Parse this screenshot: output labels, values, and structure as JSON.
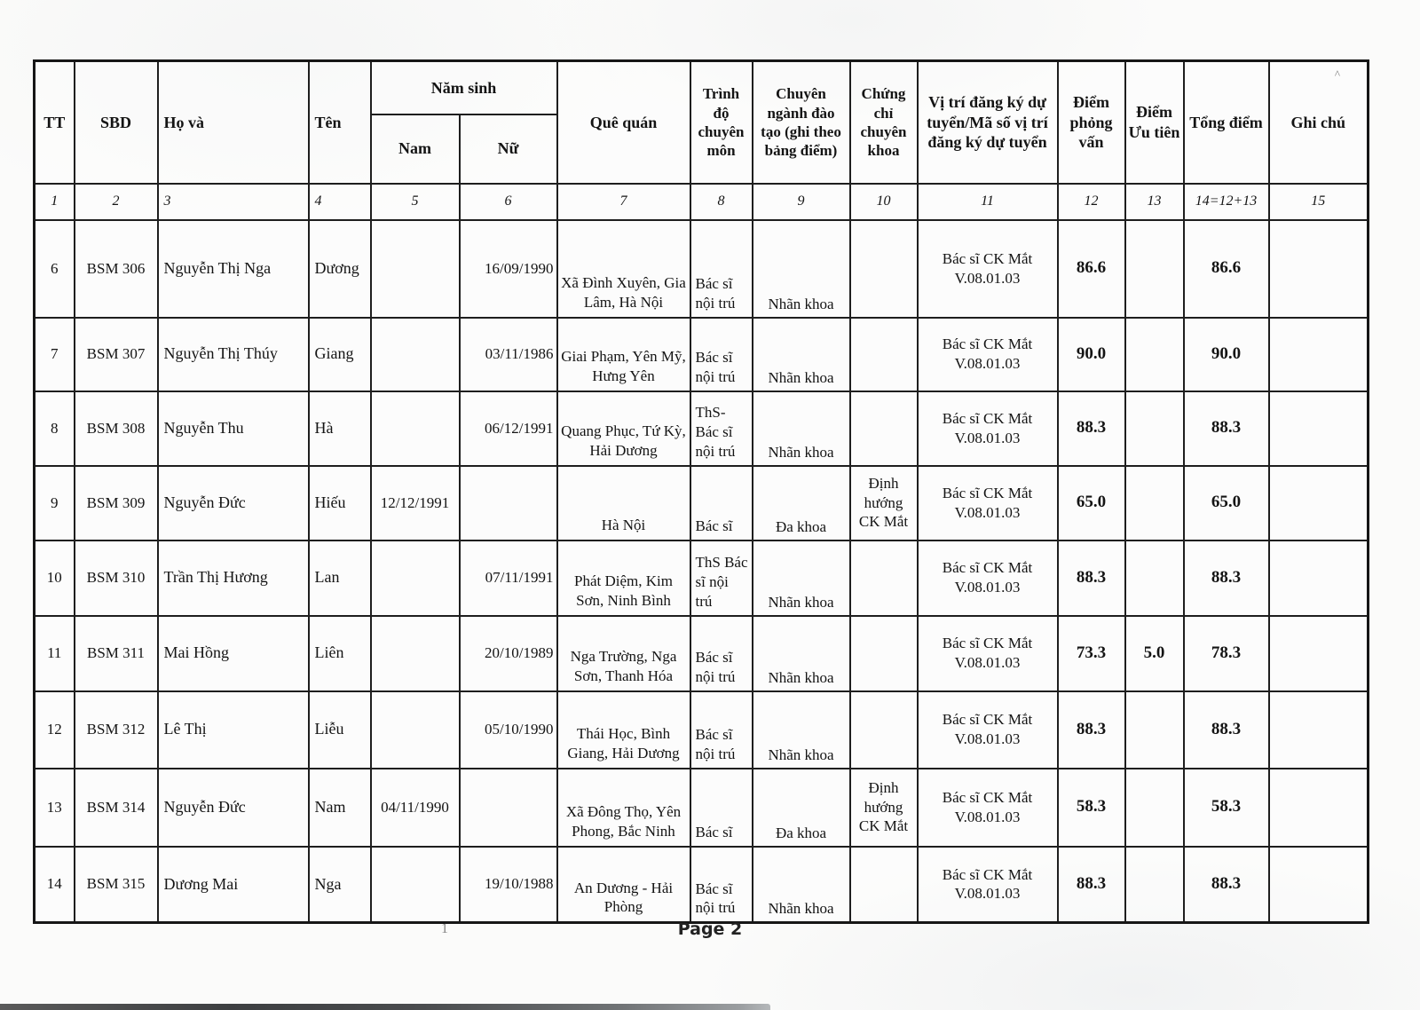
{
  "page": {
    "footer": "Page 2"
  },
  "artifacts": {
    "ghi_chu_mark": "^",
    "footer_mark": "1"
  },
  "table": {
    "headers": {
      "tt": "TT",
      "sbd": "SBD",
      "ho_va": "Họ và",
      "ten": "Tên",
      "nam_sinh": "Năm sinh",
      "nam": "Nam",
      "nu": "Nữ",
      "que_quan": "Quê quán",
      "trinh_do": "Trình độ chuyên môn",
      "chuyen_nganh": "Chuyên ngành đào tạo (ghi theo bảng điểm)",
      "chung_chi": "Chứng chỉ chuyên khoa",
      "vi_tri": "Vị trí đăng ký dự tuyển/Mã số vị trí đăng ký dự tuyển",
      "diem_pv": "Điểm phỏng vấn",
      "diem_ut": "Điểm Ưu tiên",
      "tong_diem": "Tổng điểm",
      "ghi_chu": "Ghi chú"
    },
    "column_numbers": [
      "1",
      "2",
      "3",
      "4",
      "5",
      "6",
      "7",
      "8",
      "9",
      "10",
      "11",
      "12",
      "13",
      "14=12+13",
      "15"
    ],
    "rows": [
      {
        "tt": "6",
        "sbd": "BSM 306",
        "ho_va": "Nguyễn Thị Nga",
        "ten": "Dương",
        "nam": "",
        "nu": "16/09/1990",
        "que_quan": "Xã Đình Xuyên, Gia Lâm, Hà Nội",
        "trinh_do": "Bác sĩ nội trú",
        "chuyen_nganh": "Nhãn khoa",
        "chung_chi": "",
        "vi_tri": "Bác sĩ CK Mắt V.08.01.03",
        "diem_pv": "86.6",
        "diem_ut": "",
        "tong_diem": "86.6",
        "ghi_chu": ""
      },
      {
        "tt": "7",
        "sbd": "BSM 307",
        "ho_va": "Nguyễn Thị Thúy",
        "ten": "Giang",
        "nam": "",
        "nu": "03/11/1986",
        "que_quan": "Giai Phạm, Yên Mỹ, Hưng Yên",
        "trinh_do": "Bác sĩ nội trú",
        "chuyen_nganh": "Nhãn khoa",
        "chung_chi": "",
        "vi_tri": "Bác sĩ CK Mắt V.08.01.03",
        "diem_pv": "90.0",
        "diem_ut": "",
        "tong_diem": "90.0",
        "ghi_chu": ""
      },
      {
        "tt": "8",
        "sbd": "BSM 308",
        "ho_va": "Nguyễn Thu",
        "ten": "Hà",
        "nam": "",
        "nu": "06/12/1991",
        "que_quan": "Quang Phục, Tứ Kỳ, Hải Dương",
        "trinh_do": "ThS-Bác sĩ nội trú",
        "chuyen_nganh": "Nhãn khoa",
        "chung_chi": "",
        "vi_tri": "Bác sĩ CK Mắt V.08.01.03",
        "diem_pv": "88.3",
        "diem_ut": "",
        "tong_diem": "88.3",
        "ghi_chu": ""
      },
      {
        "tt": "9",
        "sbd": "BSM 309",
        "ho_va": "Nguyễn Đức",
        "ten": "Hiếu",
        "nam": "12/12/1991",
        "nu": "",
        "que_quan": "Hà Nội",
        "trinh_do": "Bác sĩ",
        "chuyen_nganh": "Đa khoa",
        "chung_chi": "Định hướng CK Mắt",
        "vi_tri": "Bác sĩ CK Mắt V.08.01.03",
        "diem_pv": "65.0",
        "diem_ut": "",
        "tong_diem": "65.0",
        "ghi_chu": ""
      },
      {
        "tt": "10",
        "sbd": "BSM 310",
        "ho_va": "Trần Thị Hương",
        "ten": "Lan",
        "nam": "",
        "nu": "07/11/1991",
        "que_quan": "Phát Diệm, Kim Sơn, Ninh Bình",
        "trinh_do": "ThS Bác sĩ nội trú",
        "chuyen_nganh": "Nhãn khoa",
        "chung_chi": "",
        "vi_tri": "Bác sĩ CK Mắt V.08.01.03",
        "diem_pv": "88.3",
        "diem_ut": "",
        "tong_diem": "88.3",
        "ghi_chu": ""
      },
      {
        "tt": "11",
        "sbd": "BSM 311",
        "ho_va": "Mai Hồng",
        "ten": "Liên",
        "nam": "",
        "nu": "20/10/1989",
        "que_quan": "Nga Trường, Nga Sơn, Thanh Hóa",
        "trinh_do": "Bác sĩ nội trú",
        "chuyen_nganh": "Nhãn khoa",
        "chung_chi": "",
        "vi_tri": "Bác sĩ CK Mắt V.08.01.03",
        "diem_pv": "73.3",
        "diem_ut": "5.0",
        "tong_diem": "78.3",
        "ghi_chu": ""
      },
      {
        "tt": "12",
        "sbd": "BSM 312",
        "ho_va": "Lê Thị",
        "ten": "Liễu",
        "nam": "",
        "nu": "05/10/1990",
        "que_quan": "Thái Học, Bình Giang, Hải Dương",
        "trinh_do": "Bác sĩ nội trú",
        "chuyen_nganh": "Nhãn khoa",
        "chung_chi": "",
        "vi_tri": "Bác sĩ CK Mắt V.08.01.03",
        "diem_pv": "88.3",
        "diem_ut": "",
        "tong_diem": "88.3",
        "ghi_chu": ""
      },
      {
        "tt": "13",
        "sbd": "BSM 314",
        "ho_va": "Nguyễn Đức",
        "ten": "Nam",
        "nam": "04/11/1990",
        "nu": "",
        "que_quan": "Xã Đông Thọ, Yên Phong, Bắc Ninh",
        "trinh_do": "Bác sĩ",
        "chuyen_nganh": "Đa khoa",
        "chung_chi": "Định hướng CK Mắt",
        "vi_tri": "Bác sĩ CK Mắt V.08.01.03",
        "diem_pv": "58.3",
        "diem_ut": "",
        "tong_diem": "58.3",
        "ghi_chu": ""
      },
      {
        "tt": "14",
        "sbd": "BSM 315",
        "ho_va": "Dương Mai",
        "ten": "Nga",
        "nam": "",
        "nu": "19/10/1988",
        "que_quan": "An Dương - Hải Phòng",
        "trinh_do": "Bác sĩ nội trú",
        "chuyen_nganh": "Nhãn khoa",
        "chung_chi": "",
        "vi_tri": "Bác sĩ CK Mắt V.08.01.03",
        "diem_pv": "88.3",
        "diem_ut": "",
        "tong_diem": "88.3",
        "ghi_chu": ""
      }
    ]
  }
}
